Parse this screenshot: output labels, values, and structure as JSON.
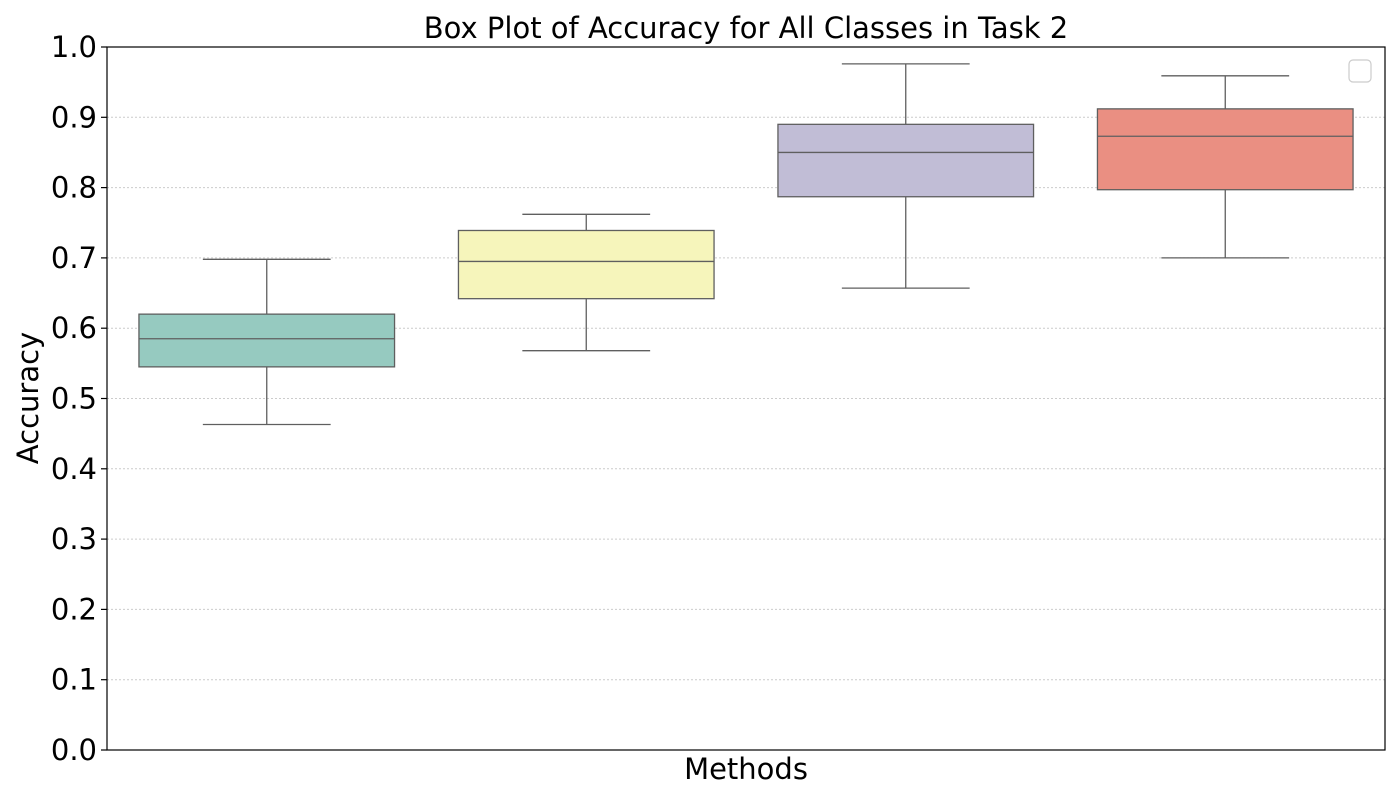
{
  "chart_data": {
    "type": "box",
    "title": "Box Plot of Accuracy for All Classes in Task 2",
    "xlabel": "Methods",
    "ylabel": "Accuracy",
    "ylim": [
      0.0,
      1.0
    ],
    "yticks": [
      "0.0",
      "0.1",
      "0.2",
      "0.3",
      "0.4",
      "0.5",
      "0.6",
      "0.7",
      "0.8",
      "0.9",
      "1.0"
    ],
    "grid": "horizontal-dotted",
    "legend": {
      "placement": "top-right",
      "entries": []
    },
    "boxes": [
      {
        "min": 0.463,
        "q1": 0.545,
        "median": 0.585,
        "q3": 0.62,
        "max": 0.698,
        "color": "#96cac0"
      },
      {
        "min": 0.568,
        "q1": 0.642,
        "median": 0.695,
        "q3": 0.739,
        "max": 0.762,
        "color": "#f6f5bb"
      },
      {
        "min": 0.657,
        "q1": 0.787,
        "median": 0.85,
        "q3": 0.89,
        "max": 0.976,
        "color": "#c1bdd6"
      },
      {
        "min": 0.7,
        "q1": 0.797,
        "median": 0.873,
        "q3": 0.912,
        "max": 0.959,
        "color": "#ea8f82"
      }
    ]
  }
}
